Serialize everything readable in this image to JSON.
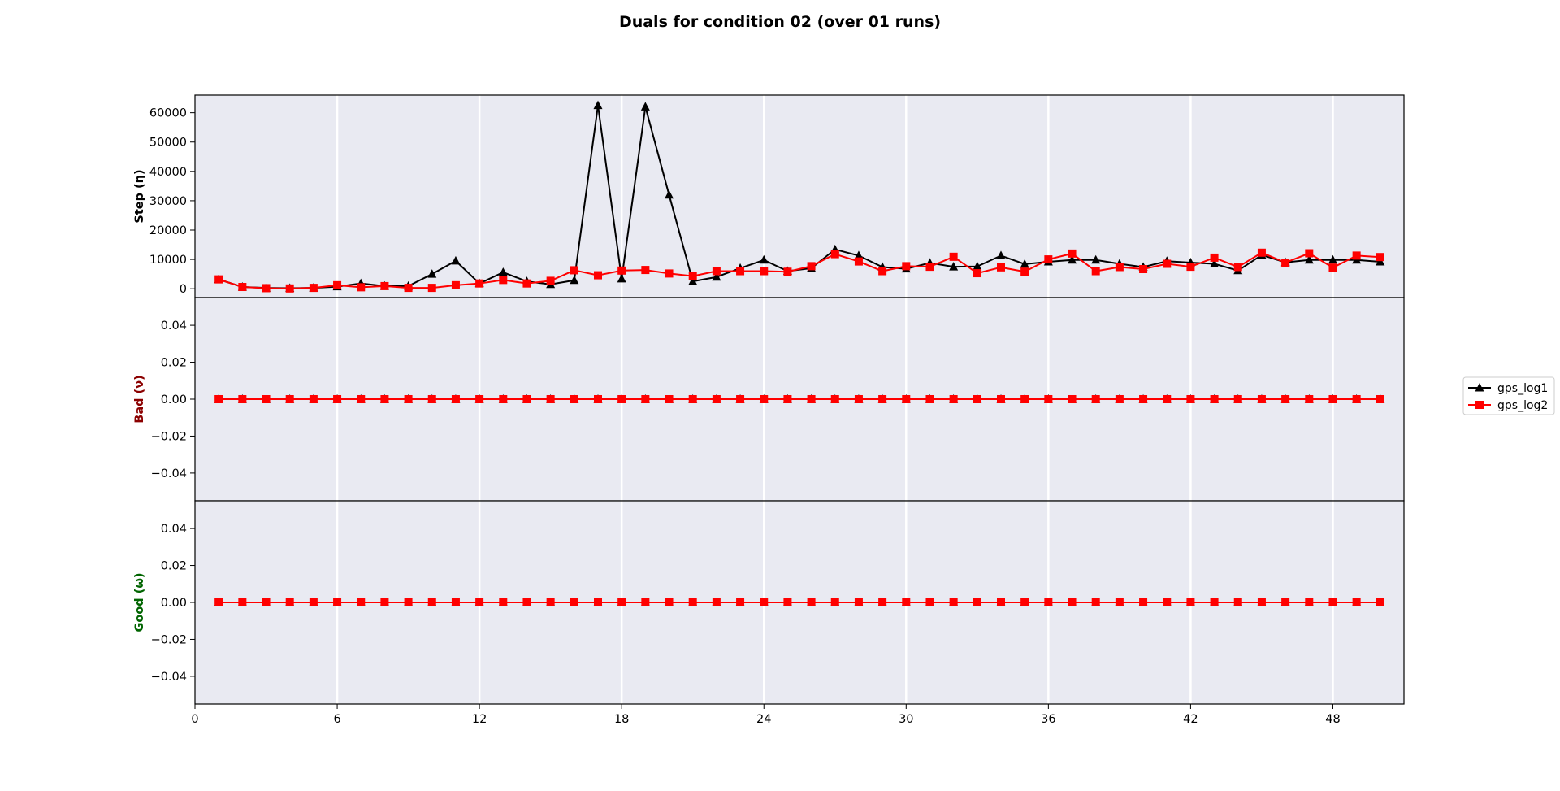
{
  "figure": {
    "title": "Duals for condition 02 (over 01 runs)",
    "background": "#ffffff",
    "axes_facecolor": "#e9eaf2",
    "grid_color": "#ffffff"
  },
  "legend": {
    "placement": "center-right-outside",
    "entries": [
      {
        "label": "gps_log1",
        "color": "#000000",
        "marker": "triangle-up"
      },
      {
        "label": "gps_log2",
        "color": "#ff0000",
        "marker": "square"
      }
    ]
  },
  "chart_data": [
    {
      "type": "line",
      "ylabel": "Step (η)",
      "ylabel_color": "#000000",
      "ylim": [
        -3000,
        66000
      ],
      "yticks": [
        0,
        10000,
        20000,
        30000,
        40000,
        50000,
        60000
      ],
      "xlim": [
        0,
        51
      ],
      "xticks": [
        0,
        6,
        12,
        18,
        24,
        30,
        36,
        42,
        48
      ],
      "grid": "vertical",
      "x": [
        1,
        2,
        3,
        4,
        5,
        6,
        7,
        8,
        9,
        10,
        11,
        12,
        13,
        14,
        15,
        16,
        17,
        18,
        19,
        20,
        21,
        22,
        23,
        24,
        25,
        26,
        27,
        28,
        29,
        30,
        31,
        32,
        33,
        34,
        35,
        36,
        37,
        38,
        39,
        40,
        41,
        42,
        43,
        44,
        45,
        46,
        47,
        48,
        49,
        50
      ],
      "series": [
        {
          "name": "gps_log1",
          "color": "#000000",
          "marker": "triangle-up",
          "values": [
            3200,
            600,
            300,
            200,
            300,
            700,
            1800,
            900,
            900,
            5000,
            9500,
            1800,
            5600,
            2500,
            1500,
            2900,
            62500,
            3400,
            62000,
            32000,
            2500,
            4000,
            7000,
            9800,
            6000,
            7000,
            13400,
            11300,
            7400,
            6800,
            8800,
            7500,
            7600,
            11300,
            8400,
            9200,
            9800,
            9800,
            8500,
            7400,
            9400,
            8900,
            8500,
            6200,
            11500,
            9000,
            9800,
            9800,
            9800,
            9200
          ]
        },
        {
          "name": "gps_log2",
          "color": "#ff0000",
          "marker": "square",
          "values": [
            3200,
            600,
            200,
            100,
            300,
            1200,
            500,
            900,
            300,
            300,
            1200,
            1800,
            3000,
            1800,
            2700,
            6300,
            4600,
            6200,
            6400,
            5200,
            4300,
            6000,
            6000,
            6000,
            5800,
            7700,
            11800,
            9300,
            6000,
            7700,
            7500,
            10900,
            5300,
            7300,
            5800,
            10000,
            12000,
            6000,
            7400,
            6700,
            8500,
            7500,
            10600,
            7400,
            12300,
            8900,
            12100,
            7200,
            11300,
            10800
          ]
        }
      ]
    },
    {
      "type": "line",
      "ylabel": "Bad (ν)",
      "ylabel_color": "#8b0000",
      "ylim": [
        -0.055,
        0.055
      ],
      "yticks": [
        -0.04,
        -0.02,
        0.0,
        0.02,
        0.04
      ],
      "ytick_labels": [
        "−0.04",
        "−0.02",
        "0.00",
        "0.02",
        "0.04"
      ],
      "xlim": [
        0,
        51
      ],
      "grid": "vertical",
      "x": [
        1,
        2,
        3,
        4,
        5,
        6,
        7,
        8,
        9,
        10,
        11,
        12,
        13,
        14,
        15,
        16,
        17,
        18,
        19,
        20,
        21,
        22,
        23,
        24,
        25,
        26,
        27,
        28,
        29,
        30,
        31,
        32,
        33,
        34,
        35,
        36,
        37,
        38,
        39,
        40,
        41,
        42,
        43,
        44,
        45,
        46,
        47,
        48,
        49,
        50
      ],
      "series": [
        {
          "name": "gps_log1",
          "color": "#000000",
          "marker": "triangle-up",
          "values": [
            0,
            0,
            0,
            0,
            0,
            0,
            0,
            0,
            0,
            0,
            0,
            0,
            0,
            0,
            0,
            0,
            0,
            0,
            0,
            0,
            0,
            0,
            0,
            0,
            0,
            0,
            0,
            0,
            0,
            0,
            0,
            0,
            0,
            0,
            0,
            0,
            0,
            0,
            0,
            0,
            0,
            0,
            0,
            0,
            0,
            0,
            0,
            0,
            0,
            0
          ]
        },
        {
          "name": "gps_log2",
          "color": "#ff0000",
          "marker": "square",
          "values": [
            0,
            0,
            0,
            0,
            0,
            0,
            0,
            0,
            0,
            0,
            0,
            0,
            0,
            0,
            0,
            0,
            0,
            0,
            0,
            0,
            0,
            0,
            0,
            0,
            0,
            0,
            0,
            0,
            0,
            0,
            0,
            0,
            0,
            0,
            0,
            0,
            0,
            0,
            0,
            0,
            0,
            0,
            0,
            0,
            0,
            0,
            0,
            0,
            0,
            0
          ]
        }
      ]
    },
    {
      "type": "line",
      "ylabel": "Good (ω)",
      "ylabel_color": "#006400",
      "ylim": [
        -0.055,
        0.055
      ],
      "yticks": [
        -0.04,
        -0.02,
        0.0,
        0.02,
        0.04
      ],
      "ytick_labels": [
        "−0.04",
        "−0.02",
        "0.00",
        "0.02",
        "0.04"
      ],
      "xlim": [
        0,
        51
      ],
      "xticks": [
        0,
        6,
        12,
        18,
        24,
        30,
        36,
        42,
        48
      ],
      "grid": "vertical",
      "x": [
        1,
        2,
        3,
        4,
        5,
        6,
        7,
        8,
        9,
        10,
        11,
        12,
        13,
        14,
        15,
        16,
        17,
        18,
        19,
        20,
        21,
        22,
        23,
        24,
        25,
        26,
        27,
        28,
        29,
        30,
        31,
        32,
        33,
        34,
        35,
        36,
        37,
        38,
        39,
        40,
        41,
        42,
        43,
        44,
        45,
        46,
        47,
        48,
        49,
        50
      ],
      "series": [
        {
          "name": "gps_log1",
          "color": "#000000",
          "marker": "triangle-up",
          "values": [
            0,
            0,
            0,
            0,
            0,
            0,
            0,
            0,
            0,
            0,
            0,
            0,
            0,
            0,
            0,
            0,
            0,
            0,
            0,
            0,
            0,
            0,
            0,
            0,
            0,
            0,
            0,
            0,
            0,
            0,
            0,
            0,
            0,
            0,
            0,
            0,
            0,
            0,
            0,
            0,
            0,
            0,
            0,
            0,
            0,
            0,
            0,
            0,
            0,
            0
          ]
        },
        {
          "name": "gps_log2",
          "color": "#ff0000",
          "marker": "square",
          "values": [
            0,
            0,
            0,
            0,
            0,
            0,
            0,
            0,
            0,
            0,
            0,
            0,
            0,
            0,
            0,
            0,
            0,
            0,
            0,
            0,
            0,
            0,
            0,
            0,
            0,
            0,
            0,
            0,
            0,
            0,
            0,
            0,
            0,
            0,
            0,
            0,
            0,
            0,
            0,
            0,
            0,
            0,
            0,
            0,
            0,
            0,
            0,
            0,
            0,
            0
          ]
        }
      ]
    }
  ]
}
